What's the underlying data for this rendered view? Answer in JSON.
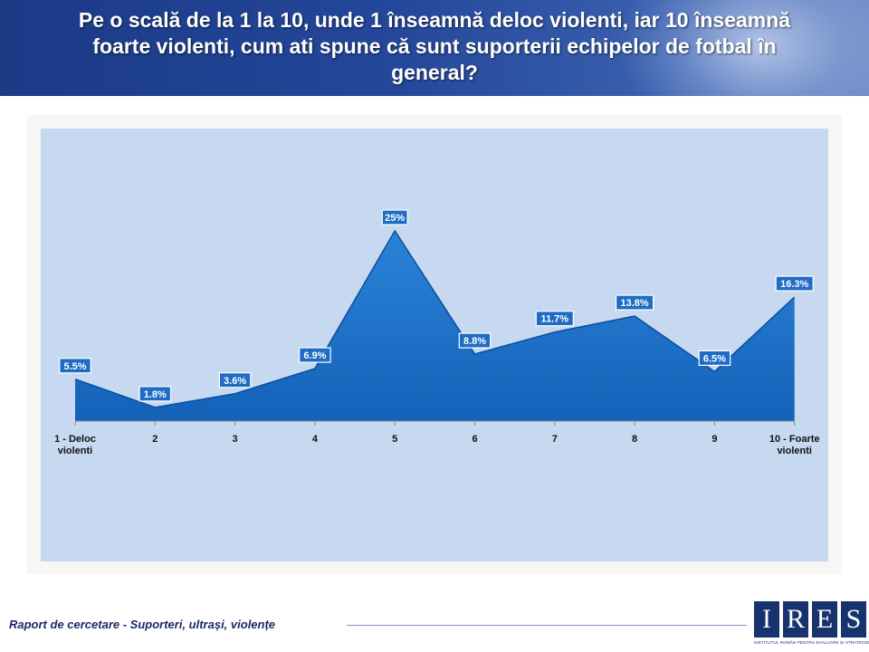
{
  "header": {
    "title_lines": [
      "Pe o scală de la 1 la 10, unde 1 înseamnă deloc violenti, iar 10 înseamnă",
      "foarte violenti, cum ati spune că sunt suporterii echipelor de fotbal în",
      "general?"
    ]
  },
  "chart_data": {
    "type": "area",
    "title": "Pe o scală de la 1 la 10, unde 1 înseamnă deloc violenti, iar 10 înseamnă foarte violenti, cum ati spune că sunt suporterii echipelor de fotbal în general?",
    "categories": [
      [
        "1 - Deloc",
        "violenti"
      ],
      [
        "2"
      ],
      [
        "3"
      ],
      [
        "4"
      ],
      [
        "5"
      ],
      [
        "6"
      ],
      [
        "7"
      ],
      [
        "8"
      ],
      [
        "9"
      ],
      [
        "10 - Foarte",
        "violenti"
      ]
    ],
    "values": [
      5.5,
      1.8,
      3.6,
      6.9,
      25,
      8.8,
      11.7,
      13.8,
      6.5,
      16.3
    ],
    "data_labels": [
      "5.5%",
      "1.8%",
      "3.6%",
      "6.9%",
      "25%",
      "8.8%",
      "11.7%",
      "13.8%",
      "6.5%",
      "16.3%"
    ],
    "ylim": [
      0,
      28
    ],
    "xlabel": "",
    "ylabel": "",
    "legend": "none",
    "colors": {
      "area": "#1d72c8",
      "area_dark": "#0f4f9e",
      "plot_bg": "#c6d9f1",
      "label_bg": "#1e6cc4"
    }
  },
  "footer": {
    "report_title": "Raport de cercetare - Suporteri, ultrași, violențe"
  },
  "logo": {
    "letters": [
      "I",
      "R",
      "E",
      "S"
    ],
    "subtitle": "INSTITUTUL ROMÂN PENTRU EVALUARE ȘI STRATEGIE"
  }
}
